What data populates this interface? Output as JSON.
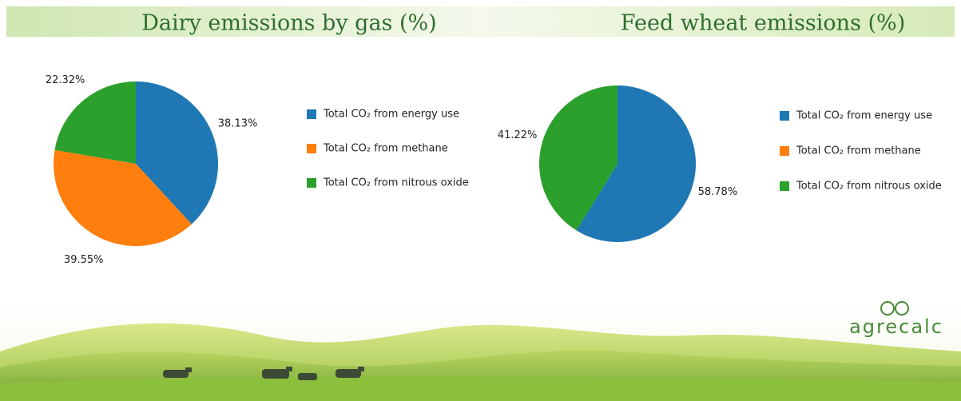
{
  "chart_data": [
    {
      "type": "pie",
      "title": "Dairy emissions by gas (%)",
      "categories": [
        "Total CO₂ from energy use",
        "Total CO₂ from methane",
        "Total CO₂ from nitrous oxide"
      ],
      "values": [
        38.13,
        39.55,
        22.32
      ],
      "value_labels": [
        "38.13%",
        "39.55%",
        "22.32%"
      ],
      "colors": [
        "#1f77b4",
        "#ff7f0e",
        "#2ca02c"
      ]
    },
    {
      "type": "pie",
      "title": "Feed wheat emissions (%)",
      "categories": [
        "Total CO₂ from energy use",
        "Total CO₂ from methane",
        "Total CO₂ from nitrous oxide"
      ],
      "values": [
        58.78,
        0,
        41.22
      ],
      "value_labels": [
        "58.78%",
        null,
        "41.22%"
      ],
      "colors": [
        "#1f77b4",
        "#ff7f0e",
        "#2ca02c"
      ]
    }
  ],
  "logo": "agrecalc"
}
